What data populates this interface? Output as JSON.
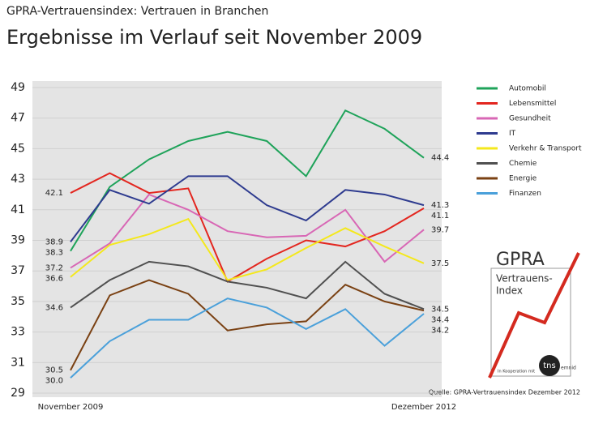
{
  "chart_data": {
    "type": "line",
    "supertitle": "GPRA-Vertrauensindex: Vertrauen in Branchen",
    "title": "Ergebnisse im Verlauf seit November 2009",
    "categories": [
      "November 2009",
      null,
      null,
      null,
      null,
      null,
      null,
      null,
      null,
      "Dezember 2012"
    ],
    "ylim": [
      29,
      49
    ],
    "yticks": [
      29,
      31,
      33,
      35,
      37,
      39,
      41,
      43,
      45,
      47,
      49
    ],
    "grid": true,
    "series": [
      {
        "name": "Automobil",
        "color": "#1fa35a",
        "values": [
          38.3,
          42.5,
          44.3,
          45.5,
          46.1,
          45.5,
          43.2,
          47.5,
          46.3,
          44.4
        ],
        "value_labels": [
          "38.3",
          null,
          null,
          null,
          null,
          null,
          null,
          null,
          null,
          "44.4"
        ]
      },
      {
        "name": "Lebensmittel",
        "color": "#e3261f",
        "values": [
          42.1,
          43.4,
          42.1,
          42.4,
          36.3,
          37.8,
          39.0,
          38.6,
          39.6,
          41.1
        ],
        "value_labels": [
          "42.1",
          null,
          null,
          null,
          null,
          null,
          null,
          null,
          null,
          "41.1"
        ]
      },
      {
        "name": "Gesundheit",
        "color": "#d867b5",
        "values": [
          37.2,
          38.8,
          42.0,
          41.0,
          39.6,
          39.2,
          39.3,
          41.0,
          37.6,
          39.7
        ],
        "value_labels": [
          "37.2",
          null,
          null,
          null,
          null,
          null,
          null,
          null,
          null,
          "39.7"
        ]
      },
      {
        "name": "IT",
        "color": "#2e3b8f",
        "values": [
          38.9,
          42.3,
          41.4,
          43.2,
          43.2,
          41.3,
          40.3,
          42.3,
          42.0,
          41.3
        ],
        "value_labels": [
          "38.9",
          null,
          null,
          null,
          null,
          null,
          null,
          null,
          null,
          "41.3"
        ]
      },
      {
        "name": "Verkehr & Transport",
        "color": "#f4e81c",
        "values": [
          36.6,
          38.7,
          39.4,
          40.4,
          36.4,
          37.1,
          38.5,
          39.8,
          38.6,
          37.5
        ],
        "value_labels": [
          "36.6",
          null,
          null,
          null,
          null,
          null,
          null,
          null,
          null,
          "37.5"
        ]
      },
      {
        "name": "Chemie",
        "color": "#505050",
        "values": [
          34.6,
          36.4,
          37.6,
          37.3,
          36.3,
          35.9,
          35.2,
          37.6,
          35.5,
          34.5
        ],
        "value_labels": [
          "34.6",
          null,
          null,
          null,
          null,
          null,
          null,
          null,
          null,
          "34.5"
        ]
      },
      {
        "name": "Energie",
        "color": "#7a4113",
        "values": [
          30.5,
          35.4,
          36.4,
          35.5,
          33.1,
          33.5,
          33.7,
          36.1,
          35.0,
          34.4
        ],
        "value_labels": [
          "30.5",
          null,
          null,
          null,
          null,
          null,
          null,
          null,
          null,
          "34.4"
        ]
      },
      {
        "name": "Finanzen",
        "color": "#4aa0da",
        "values": [
          30.0,
          32.4,
          33.8,
          33.8,
          35.2,
          34.6,
          33.2,
          34.5,
          32.1,
          34.2
        ],
        "value_labels": [
          "30.0",
          null,
          null,
          null,
          null,
          null,
          null,
          null,
          null,
          "34.2"
        ]
      }
    ],
    "source": "Quelle: GPRA-Vertrauensindex Dezember 2012"
  },
  "logo": {
    "brand": "GPRA",
    "line1": "Vertrauens-",
    "line2": "Index",
    "cooperation": "In Kooperation mit",
    "partner": "tns",
    "partner_sub": "emnid"
  }
}
